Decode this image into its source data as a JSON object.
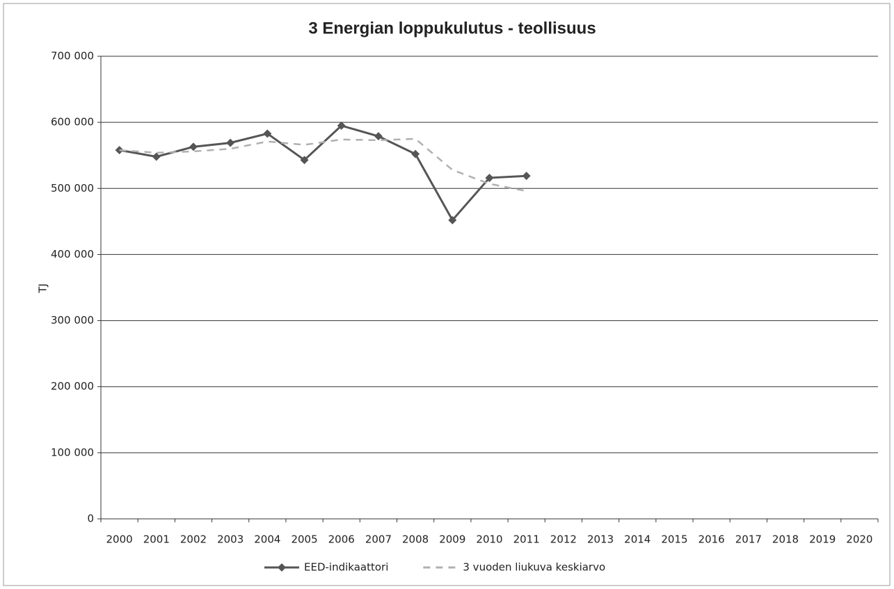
{
  "chart_data": {
    "type": "line",
    "title": "3 Energian loppukulutus - teollisuus",
    "y_label": "TJ",
    "categories": [
      "2000",
      "2001",
      "2002",
      "2003",
      "2004",
      "2005",
      "2006",
      "2007",
      "2008",
      "2009",
      "2010",
      "2011",
      "2012",
      "2013",
      "2014",
      "2015",
      "2016",
      "2017",
      "2018",
      "2019",
      "2020"
    ],
    "series": [
      {
        "name": "EED-indikaattori",
        "color": "#555555",
        "marker": "diamond",
        "dashed": false,
        "values": [
          558000,
          548000,
          563000,
          569000,
          583000,
          543000,
          595000,
          579000,
          552000,
          452000,
          516000,
          519000,
          null,
          null,
          null,
          null,
          null,
          null,
          null,
          null,
          null
        ]
      },
      {
        "name": "3 vuoden liukuva keskiarvo",
        "color": "#b0b0b0",
        "marker": null,
        "dashed": true,
        "values": [
          558000,
          554000,
          556000,
          560000,
          571000,
          566000,
          574000,
          573000,
          575000,
          528000,
          507000,
          496000,
          null,
          null,
          null,
          null,
          null,
          null,
          null,
          null,
          null
        ]
      }
    ],
    "ylim": [
      0,
      700000
    ],
    "yticks": [
      0,
      {
        "value": 100000,
        "label": "100 000"
      },
      {
        "value": 200000,
        "label": "200 000"
      },
      {
        "value": 300000,
        "label": "300 000"
      },
      {
        "value": 400000,
        "label": "400 000"
      },
      {
        "value": 500000,
        "label": "500 000"
      },
      {
        "value": 600000,
        "label": "600 000"
      },
      {
        "value": 700000,
        "label": "700 000"
      }
    ],
    "grid": true,
    "legend": "bottom"
  }
}
